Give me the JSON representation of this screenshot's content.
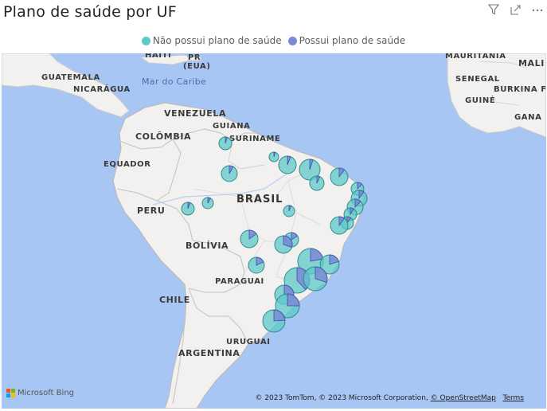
{
  "title": "Plano de saúde por UF",
  "toolbar": {
    "filter_icon": "filter-icon",
    "focus_icon": "focus-mode-icon",
    "more_icon": "more-options-icon"
  },
  "legend": {
    "items": [
      {
        "label": "Não possui plano de saúde",
        "color": "#5ec8c8"
      },
      {
        "label": "Possui plano de saúde",
        "color": "#7a8ad6"
      }
    ]
  },
  "map": {
    "labels": {
      "haiti": "HAITI",
      "pr": "PR",
      "eua": "(EUA)",
      "guatemala": "GUATEMALA",
      "nicaragua": "NICARÁGUA",
      "mar_caribe": "Mar do Caribe",
      "venezuela": "VENEZUELA",
      "guiana": "GUIANA",
      "colombia": "COLÔMBIA",
      "suriname": "SURINAME",
      "equador": "EQUADOR",
      "brasil": "BRASIL",
      "peru": "PERU",
      "bolivia": "BOLÍVIA",
      "paraguai": "PARAGUAI",
      "chile": "CHILE",
      "uruguai": "URUGUAI",
      "argentina": "ARGENTINA",
      "mauritania": "MAURITANIA",
      "mali": "MALI",
      "senegal": "SENEGAL",
      "guine": "GUINÉ",
      "burkina": "BURKINA F",
      "gana": "GANA"
    },
    "bing_label": "Microsoft Bing",
    "attribution": {
      "text": "© 2023 TomTom, © 2023 Microsoft Corporation,",
      "osm": "© OpenStreetMap",
      "terms": "Terms"
    }
  },
  "pies": [
    {
      "state": "RR",
      "possui_fraction": 0.05
    },
    {
      "state": "AP",
      "possui_fraction": 0.05
    },
    {
      "state": "AM",
      "possui_fraction": 0.08
    },
    {
      "state": "PA",
      "possui_fraction": 0.06
    },
    {
      "state": "MA",
      "possui_fraction": 0.05
    },
    {
      "state": "CE",
      "possui_fraction": 0.1
    },
    {
      "state": "PI",
      "possui_fraction": 0.07
    },
    {
      "state": "RN",
      "possui_fraction": 0.12
    },
    {
      "state": "PB",
      "possui_fraction": 0.1
    },
    {
      "state": "PE",
      "possui_fraction": 0.12
    },
    {
      "state": "AL",
      "possui_fraction": 0.09
    },
    {
      "state": "SE",
      "possui_fraction": 0.1
    },
    {
      "state": "BA",
      "possui_fraction": 0.1
    },
    {
      "state": "AC",
      "possui_fraction": 0.06
    },
    {
      "state": "RO",
      "possui_fraction": 0.08
    },
    {
      "state": "TO",
      "possui_fraction": 0.06
    },
    {
      "state": "MT",
      "possui_fraction": 0.15
    },
    {
      "state": "GO",
      "possui_fraction": 0.16
    },
    {
      "state": "DF",
      "possui_fraction": 0.3
    },
    {
      "state": "MG",
      "possui_fraction": 0.22
    },
    {
      "state": "MS",
      "possui_fraction": 0.18
    },
    {
      "state": "ES",
      "possui_fraction": 0.2
    },
    {
      "state": "SP",
      "possui_fraction": 0.38
    },
    {
      "state": "RJ",
      "possui_fraction": 0.3
    },
    {
      "state": "PR",
      "possui_fraction": 0.28
    },
    {
      "state": "SC",
      "possui_fraction": 0.25
    },
    {
      "state": "RS",
      "possui_fraction": 0.24
    }
  ]
}
